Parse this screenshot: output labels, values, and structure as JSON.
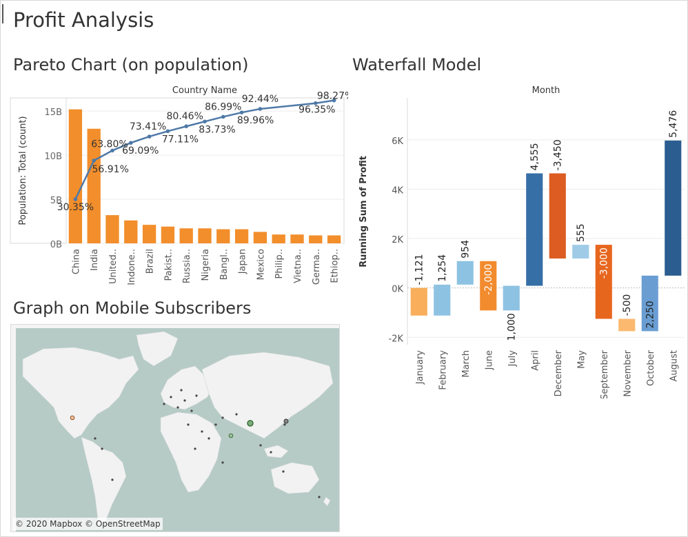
{
  "dashboard": {
    "title": "Profit Analysis",
    "pareto_title": "Pareto Chart (on population)",
    "waterfall_title": "Waterfall Model",
    "map_title": "Graph on Mobile Subscribers",
    "map_credit": "© 2020 Mapbox © OpenStreetMap"
  },
  "colors": {
    "pareto_bar": "#f28e2b",
    "pareto_line": "#4e79a7",
    "map_water": "#b7cbc6",
    "map_land": "#f2f2f2"
  },
  "chart_data": [
    {
      "type": "bar",
      "name": "pareto",
      "title": "",
      "xlabel": "Country Name",
      "ylabel": "Population: Total (count)",
      "categories": [
        "China",
        "India",
        "United..",
        "Indone..",
        "Brazil",
        "Pakist..",
        "Russia..",
        "Nigeria",
        "Bangl..",
        "Japan",
        "Mexico",
        "Philip..",
        "Vietna..",
        "Germa..",
        "Ethiop.."
      ],
      "values": [
        15.2,
        13.0,
        3.2,
        2.6,
        2.1,
        1.9,
        1.7,
        1.7,
        1.6,
        1.6,
        1.3,
        1.0,
        1.0,
        0.9,
        0.9
      ],
      "cumulative_pct": [
        30.35,
        56.91,
        63.8,
        69.09,
        73.41,
        77.11,
        80.46,
        83.73,
        86.99,
        89.96,
        92.44,
        null,
        null,
        96.35,
        98.27
      ],
      "cumulative_labels": [
        "30.35%",
        "56.91%",
        "63.80%",
        "69.09%",
        "73.41%",
        "77.11%",
        "80.46%",
        "83.73%",
        "86.99%",
        "89.96%",
        "92.44%",
        "",
        "",
        "96.35%",
        "98.27%"
      ],
      "y_ticks": [
        0,
        5,
        10,
        15
      ],
      "y_tick_labels": [
        "0B",
        "5B",
        "10B",
        "15B"
      ],
      "ylim": [
        0,
        16.5
      ],
      "grid": true
    },
    {
      "type": "bar",
      "name": "waterfall",
      "title": "",
      "xlabel": "Month",
      "ylabel": "Running Sum of Profit",
      "categories": [
        "January",
        "February",
        "March",
        "June",
        "July",
        "April",
        "December",
        "May",
        "September",
        "November",
        "October",
        "August"
      ],
      "deltas": [
        -1121,
        1254,
        954,
        -2000,
        1000,
        4555,
        -3450,
        555,
        -3000,
        -500,
        2250,
        5476
      ],
      "delta_labels": [
        "-1,121",
        "1,254",
        "954",
        "-2,000",
        "1,000",
        "4,555",
        "-3,450",
        "555",
        "-3,000",
        "-500",
        "2,250",
        "5,476"
      ],
      "bars": [
        {
          "start": 0,
          "end": -1121,
          "color": "#f8ae5a"
        },
        {
          "start": -1121,
          "end": 133,
          "color": "#8ec2e2"
        },
        {
          "start": 133,
          "end": 1087,
          "color": "#8ec2e2"
        },
        {
          "start": 1087,
          "end": -913,
          "color": "#f28b2e"
        },
        {
          "start": -913,
          "end": 87,
          "color": "#8ec2e2"
        },
        {
          "start": 87,
          "end": 4642,
          "color": "#366fa5"
        },
        {
          "start": 4642,
          "end": 1192,
          "color": "#dd5c22"
        },
        {
          "start": 1192,
          "end": 1747,
          "color": "#9fcbe7"
        },
        {
          "start": 1747,
          "end": -1253,
          "color": "#e7661e"
        },
        {
          "start": -1253,
          "end": -1753,
          "color": "#fbb970"
        },
        {
          "start": -1753,
          "end": 497,
          "color": "#6a9ed3"
        },
        {
          "start": 497,
          "end": 5973,
          "color": "#2c5d90"
        }
      ],
      "y_ticks": [
        -2000,
        0,
        2000,
        4000,
        6000
      ],
      "y_tick_labels": [
        "-2K",
        "0K",
        "2K",
        "4K",
        "6K"
      ],
      "ylim": [
        -2300,
        7700
      ],
      "grid": true
    }
  ]
}
